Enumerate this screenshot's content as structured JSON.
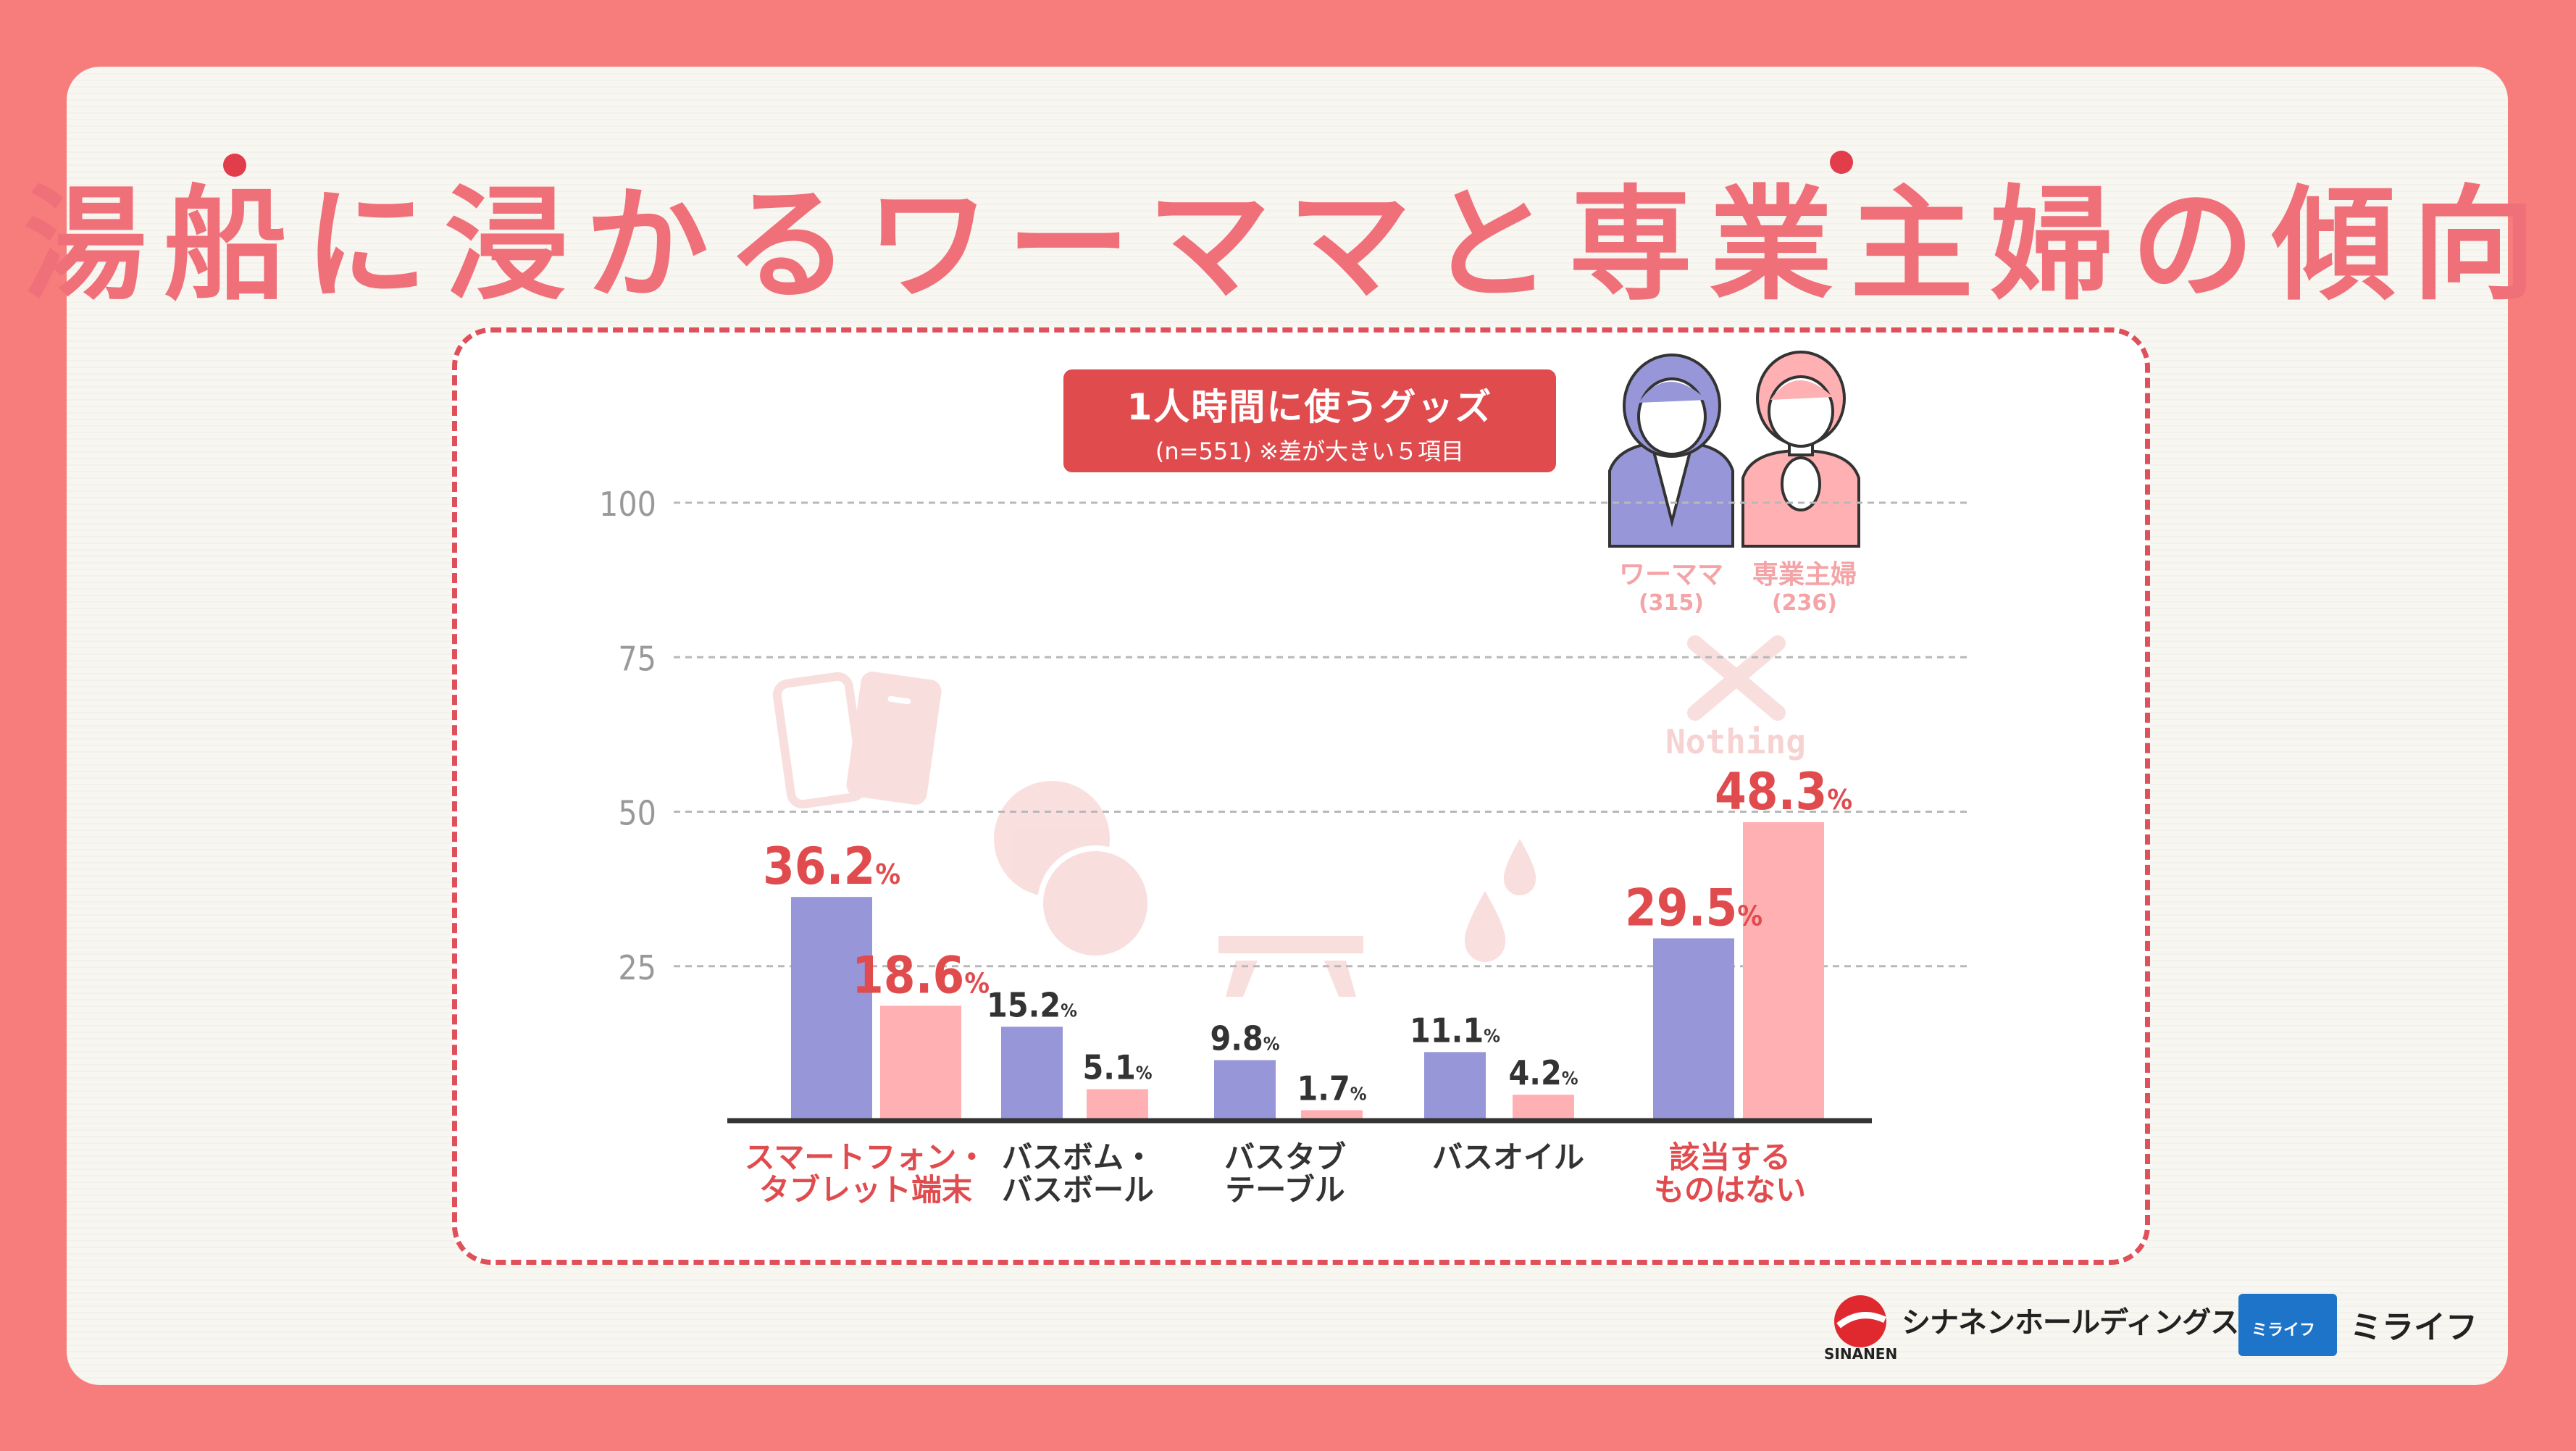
{
  "title": "湯船に浸かるワーママと専業主婦の傾向",
  "subtitle": {
    "main": "1人時間に使うグッズ",
    "sub": "(n=551) ※差が大きい５項目"
  },
  "legend": {
    "working_mom": {
      "name": "ワーママ",
      "count": "(315)"
    },
    "housewife": {
      "name": "専業主婦",
      "count": "(236)"
    }
  },
  "colors": {
    "working_mom": "#9696d8",
    "housewife": "#ffb0b2",
    "highlight_label": "#e04b4e",
    "normal_label": "#333333",
    "background": "#f77c7c"
  },
  "nothing_label": "Nothing",
  "logos": {
    "sinanen": "シナネンホールディングス",
    "sinanen_sub": "SINANEN",
    "milife_badge": "ミライフ",
    "milife": "ミライフ"
  },
  "chart_data": {
    "type": "bar",
    "categories": [
      [
        "スマートフォン・",
        "タブレット端末"
      ],
      [
        "バスボム・",
        "バスボール"
      ],
      [
        "バスタブ",
        "テーブル"
      ],
      [
        "バスオイル"
      ],
      [
        "該当する",
        "ものはない"
      ]
    ],
    "category_highlight": [
      true,
      false,
      false,
      false,
      true
    ],
    "series": [
      {
        "name": "ワーママ",
        "values": [
          36.2,
          15.2,
          9.8,
          11.1,
          29.5
        ],
        "labels": [
          "36.2",
          "15.2",
          "9.8",
          "11.1",
          "29.5"
        ]
      },
      {
        "name": "専業主婦",
        "values": [
          18.6,
          5.1,
          1.7,
          4.2,
          48.3
        ],
        "labels": [
          "18.6",
          "5.1",
          "1.7",
          "4.2",
          "48.3"
        ]
      }
    ],
    "unit": "%",
    "yticks": [
      25,
      50,
      75,
      100
    ],
    "ylim": [
      0,
      100
    ],
    "grid": true,
    "legend_position": "top-right"
  }
}
